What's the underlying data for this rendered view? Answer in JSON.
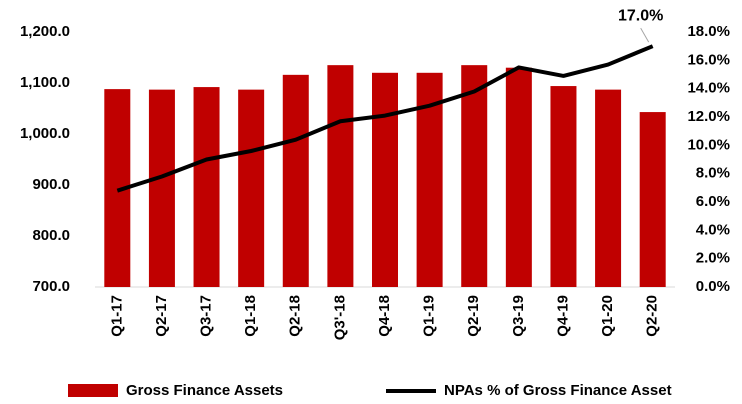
{
  "chart_data": {
    "type": "bar+line",
    "categories": [
      "Q1-17",
      "Q2-17",
      "Q3-17",
      "Q1-18",
      "Q2-18",
      "Q3'-18",
      "Q4-18",
      "Q1-19",
      "Q2-19",
      "Q3-19",
      "Q4-19",
      "Q1-20",
      "Q2-20"
    ],
    "series": [
      {
        "name": "Gross Finance Assets",
        "type": "bar",
        "color": "#c00000",
        "values": [
          1088,
          1087,
          1092,
          1087,
          1116,
          1135,
          1120,
          1120,
          1135,
          1130,
          1094,
          1087,
          1043
        ]
      },
      {
        "name": "NPAs % of Gross Finance Asset",
        "type": "line",
        "color": "#000000",
        "axis": "y2",
        "values": [
          6.8,
          7.8,
          9.0,
          9.6,
          10.4,
          11.7,
          12.1,
          12.8,
          13.8,
          15.5,
          14.9,
          15.7,
          17.0
        ],
        "value_labels": [
          null,
          null,
          null,
          null,
          null,
          null,
          null,
          null,
          null,
          null,
          null,
          null,
          "17.0%"
        ]
      }
    ],
    "ylim": [
      700,
      1200
    ],
    "yticks": [
      {
        "value": 700,
        "label": "700.0"
      },
      {
        "value": 800,
        "label": "800.0"
      },
      {
        "value": 900,
        "label": "900.0"
      },
      {
        "value": 1000,
        "label": "1,000.0"
      },
      {
        "value": 1100,
        "label": "1,100.0"
      },
      {
        "value": 1200,
        "label": "1,200.0"
      }
    ],
    "y2lim": [
      0,
      18
    ],
    "y2ticks": [
      {
        "value": 0,
        "label": "0.0%"
      },
      {
        "value": 2,
        "label": "2.0%"
      },
      {
        "value": 4,
        "label": "4.0%"
      },
      {
        "value": 6,
        "label": "6.0%"
      },
      {
        "value": 8,
        "label": "8.0%"
      },
      {
        "value": 10,
        "label": "10.0%"
      },
      {
        "value": 12,
        "label": "12.0%"
      },
      {
        "value": 14,
        "label": "14.0%"
      },
      {
        "value": 16,
        "label": "16.0%"
      },
      {
        "value": 18,
        "label": "18.0%"
      }
    ],
    "grid": false,
    "legend": "bottom"
  }
}
